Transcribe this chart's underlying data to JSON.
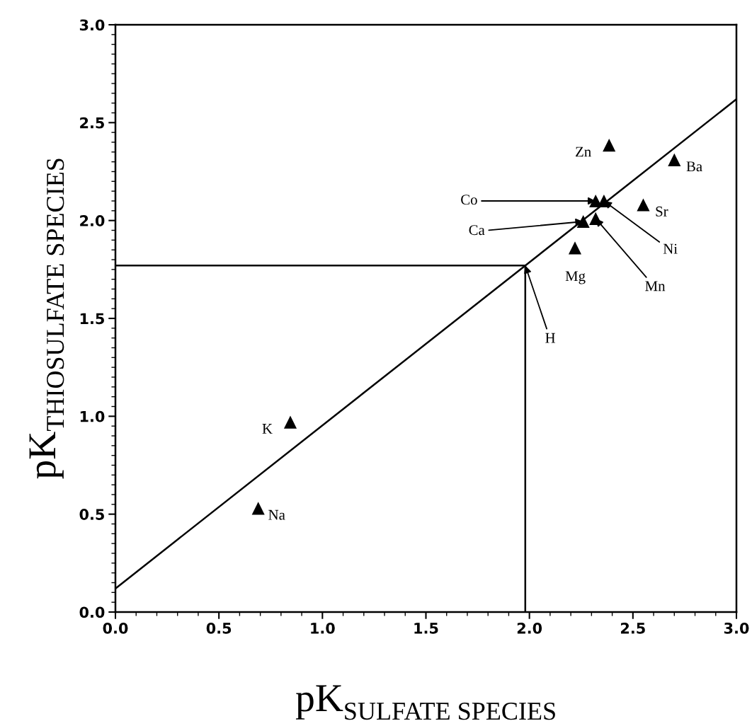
{
  "chart_data": {
    "type": "scatter",
    "xlabel": "pK$_{SULFATE SPECIES}$",
    "ylabel": "pK$_{THIOSULFATE SPECIES}$",
    "xlim": [
      0.0,
      3.0
    ],
    "ylim": [
      0.0,
      3.0
    ],
    "xticks": [
      {
        "value": 0,
        "label": "0.0"
      },
      0.5,
      {
        "value": 1,
        "label": "1.0"
      },
      1.5,
      {
        "value": 2,
        "label": "2.0"
      },
      2.5,
      {
        "value": 3,
        "label": "3.0"
      }
    ],
    "yticks": [
      {
        "value": 0,
        "label": "0.0"
      },
      0.5,
      {
        "value": 1,
        "label": "1.0"
      },
      1.5,
      {
        "value": 2,
        "label": "2.0"
      },
      2.5,
      {
        "value": 3,
        "label": "3.0"
      }
    ],
    "grid": false,
    "legend": false,
    "series": [
      {
        "marker": "triangle",
        "color": "#000000",
        "x": [
          0.69,
          0.845,
          2.385,
          2.7,
          2.55,
          2.32,
          2.36,
          2.26,
          2.32,
          2.22
        ],
        "values": [
          0.53,
          0.97,
          2.385,
          2.31,
          2.08,
          2.1,
          2.1,
          1.995,
          2.01,
          1.86
        ]
      },
      {
        "type": "line",
        "color": "#000000",
        "x": [
          0.0,
          3.0
        ],
        "values": [
          0.12,
          2.62
        ]
      },
      {
        "type": "line",
        "color": "#000000",
        "x": [
          0.0,
          1.98,
          1.98
        ],
        "values": [
          1.77,
          1.77,
          0.0
        ]
      }
    ],
    "annotations": [
      {
        "text": "Na",
        "x": 0.69,
        "y": 0.53
      },
      {
        "text": "K",
        "x": 0.845,
        "y": 0.97
      },
      {
        "text": "Zn",
        "x": 2.385,
        "y": 2.385
      },
      {
        "text": "Ba",
        "x": 2.7,
        "y": 2.31
      },
      {
        "text": "Sr",
        "x": 2.55,
        "y": 2.08
      },
      {
        "text": "Co",
        "x": 2.32,
        "y": 2.1
      },
      {
        "text": "Ni",
        "x": 2.36,
        "y": 2.1
      },
      {
        "text": "Ca",
        "x": 2.26,
        "y": 1.995
      },
      {
        "text": "Mn",
        "x": 2.32,
        "y": 2.01
      },
      {
        "text": "Mg",
        "x": 2.22,
        "y": 1.86
      },
      {
        "text": "H",
        "x": 1.98,
        "y": 1.77
      }
    ]
  }
}
